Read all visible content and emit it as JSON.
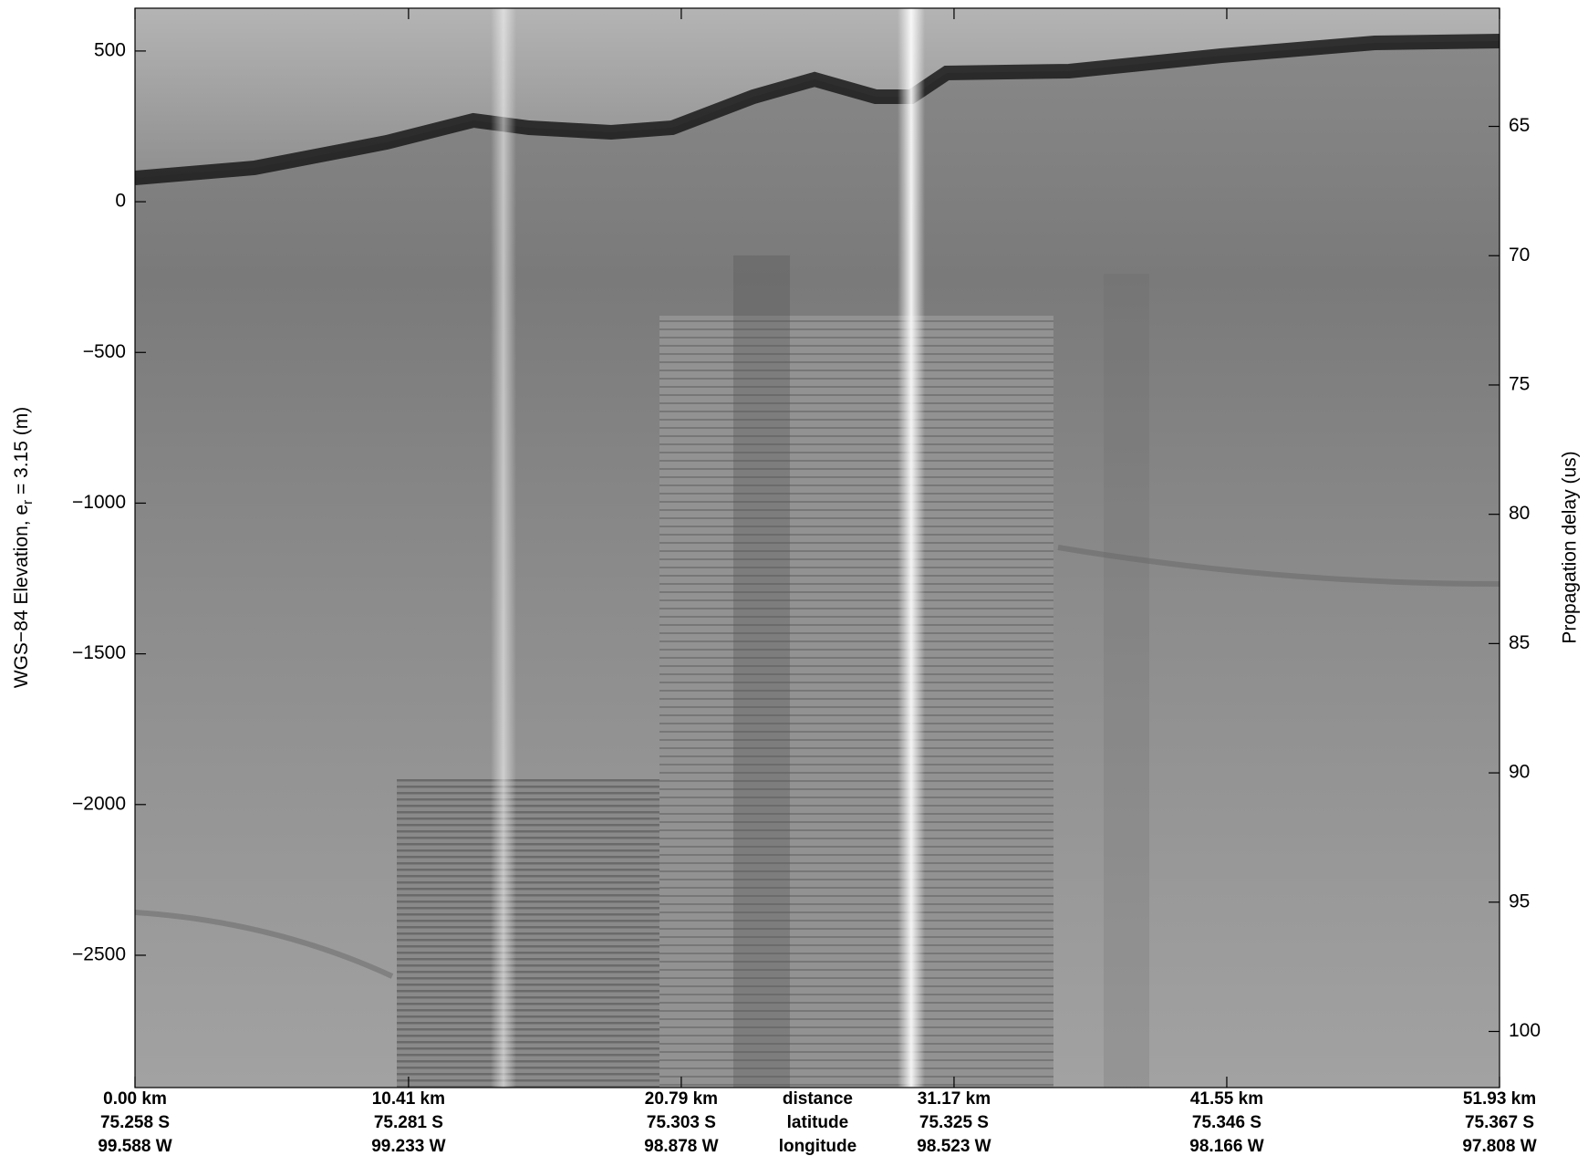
{
  "chart_data": {
    "type": "radargram",
    "ylabel": [
      "WGS−84 Elevation, e",
      "r",
      " = 3.15 (m)"
    ],
    "y2label": "Propagation delay (us)",
    "xlim": [
      0,
      51.93
    ],
    "xticks": [
      {
        "value": 0,
        "label": "0.00 km"
      },
      {
        "value": 10.41,
        "label": "10.41 km"
      },
      {
        "value": 20.79,
        "label": "20.79 km"
      },
      {
        "value": 31.17,
        "label": "31.17 km"
      },
      {
        "value": 41.55,
        "label": "41.55 km"
      },
      {
        "value": 51.93,
        "label": "51.93 km"
      }
    ],
    "xtick_latitudes": [
      "75.258 S",
      "75.281 S",
      "75.303 S",
      "75.325 S",
      "75.346 S",
      "75.367 S"
    ],
    "xtick_longitudes": [
      "99.588 W",
      "99.233 W",
      "98.878 W",
      "98.523 W",
      "98.166 W",
      "97.808 W"
    ],
    "xtick_row_names": [
      "distance",
      "latitude",
      "longitude"
    ],
    "ylim": [
      -2939,
      642
    ],
    "yticks": [
      {
        "value": 500,
        "label": "500"
      },
      {
        "value": 0,
        "label": "0"
      },
      {
        "value": -500,
        "label": "−500"
      },
      {
        "value": -1000,
        "label": "−1000"
      },
      {
        "value": -1500,
        "label": "−1500"
      },
      {
        "value": -2000,
        "label": "−2000"
      },
      {
        "value": -2500,
        "label": "−2500"
      }
    ],
    "y2lim": [
      102.17,
      60.43
    ],
    "y2ticks": [
      65,
      70,
      75,
      80,
      85,
      90,
      95,
      100
    ]
  }
}
